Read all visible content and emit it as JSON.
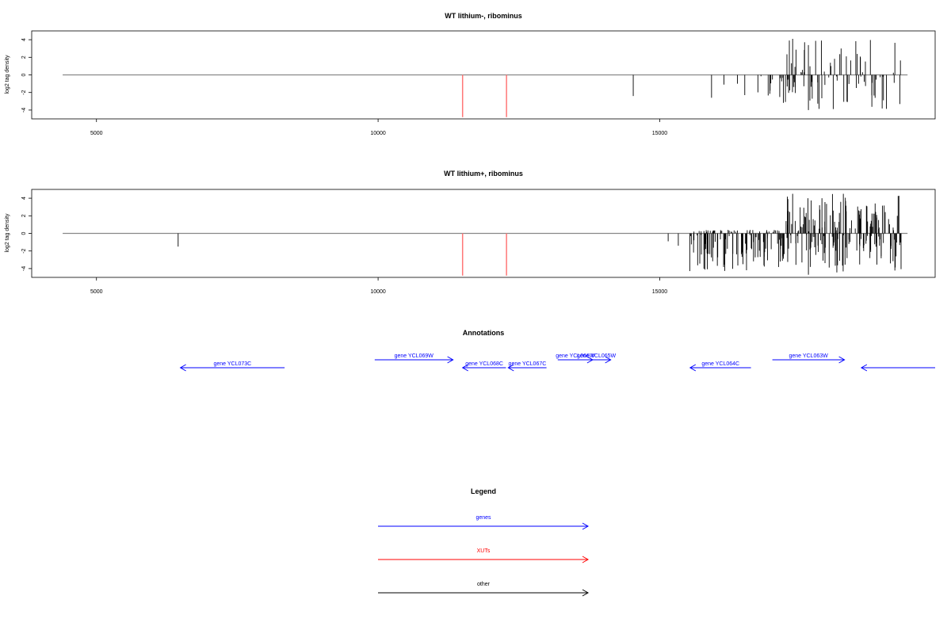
{
  "chart_data": [
    {
      "type": "bar",
      "title": "WT lithium-, ribominus",
      "ylabel": "log2 tag density",
      "xlim": [
        3850,
        19890
      ],
      "ylim": [
        -5,
        5
      ],
      "xticks": [
        5000,
        10000,
        15000
      ],
      "yticks": [
        -4,
        -2,
        0,
        2,
        4
      ],
      "baseline": [
        4400,
        19400
      ],
      "xut_lines": [
        11500,
        12280
      ],
      "xut_ymin": -4.8,
      "clusters": [
        {
          "start": 17170,
          "end": 19300,
          "pos_max": 4,
          "neg_max": 4,
          "count": 90
        },
        {
          "start": 16700,
          "end": 17170,
          "pos_max": 0,
          "neg_max": 2.8,
          "count": 10
        }
      ],
      "bars": [
        {
          "x": 14530,
          "y": -2.4
        },
        {
          "x": 15920,
          "y": -2.6
        },
        {
          "x": 16140,
          "y": -1.1
        },
        {
          "x": 16380,
          "y": -1.0
        },
        {
          "x": 16510,
          "y": -2.3
        },
        {
          "x": 17360,
          "y": 4.1
        },
        {
          "x": 17870,
          "y": 3.9
        },
        {
          "x": 17640,
          "y": -4.0
        },
        {
          "x": 18220,
          "y": 3.0
        }
      ]
    },
    {
      "type": "bar",
      "title": "WT lithium+, ribominus",
      "ylabel": "log2 tag density",
      "xlim": [
        3850,
        19890
      ],
      "ylim": [
        -5,
        5
      ],
      "xticks": [
        5000,
        10000,
        15000
      ],
      "yticks": [
        -4,
        -2,
        0,
        2,
        4
      ],
      "baseline": [
        4400,
        19400
      ],
      "xut_lines": [
        11500,
        12280
      ],
      "xut_ymin": -4.8,
      "clusters": [
        {
          "start": 17170,
          "end": 19300,
          "pos_max": 4.5,
          "neg_max": 4.5,
          "count": 210
        },
        {
          "start": 15500,
          "end": 17170,
          "pos_max": 0.4,
          "neg_max": 4.5,
          "count": 150
        }
      ],
      "bars": [
        {
          "x": 6450,
          "y": -1.5
        },
        {
          "x": 15150,
          "y": -0.9
        },
        {
          "x": 15330,
          "y": -1.4
        },
        {
          "x": 17360,
          "y": 4.5
        },
        {
          "x": 18260,
          "y": 4.5
        },
        {
          "x": 17640,
          "y": -4.7
        }
      ]
    }
  ],
  "annotations": {
    "title": "Annotations",
    "genes": [
      {
        "label": "gene YCL073C",
        "start": 8340,
        "end": 6490,
        "row": 1
      },
      {
        "label": "gene YCL069W",
        "start": 9940,
        "end": 11330,
        "row": 0
      },
      {
        "label": "gene YCL068C",
        "start": 12270,
        "end": 11500,
        "row": 1
      },
      {
        "label": "gene YCL067C",
        "start": 12990,
        "end": 12310,
        "row": 1
      },
      {
        "label": "gene YCL066W",
        "start": 13190,
        "end": 13810,
        "row": 0
      },
      {
        "label": "gene YCL065W",
        "start": 13620,
        "end": 14130,
        "row": 0
      },
      {
        "label": "gene YCL064C",
        "start": 16620,
        "end": 15540,
        "row": 1
      },
      {
        "label": "gene YCL063W",
        "start": 17000,
        "end": 18280,
        "row": 0
      },
      {
        "label": "",
        "start": 19890,
        "end": 18580,
        "row": 1
      }
    ]
  },
  "legend": {
    "title": "Legend",
    "items": [
      {
        "label": "genes",
        "color": "#0000ff"
      },
      {
        "label": "XUTs",
        "color": "#ff0000"
      },
      {
        "label": "other",
        "color": "#000000"
      }
    ]
  },
  "colors": {
    "gene": "#0000ff",
    "xut": "#ff7777",
    "bar": "#000000",
    "baseline": "#888888"
  }
}
